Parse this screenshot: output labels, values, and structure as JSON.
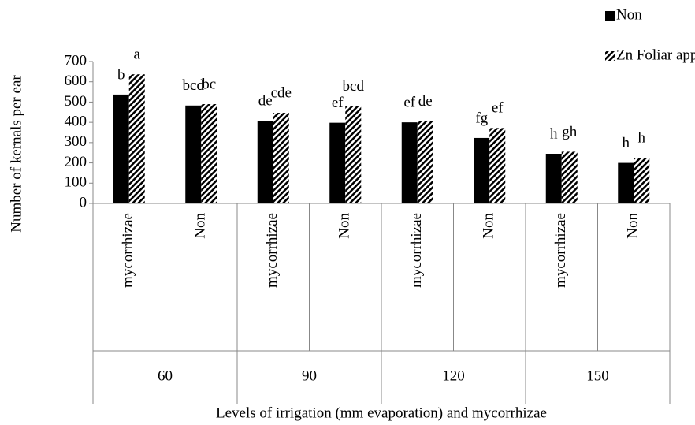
{
  "chart_data": {
    "type": "bar",
    "x_label": "Levels of irrigation (mm evaporation) and mycorrhizae",
    "y_label": "Number of kernals per ear",
    "groups": [
      "60",
      "90",
      "120",
      "150"
    ],
    "categories": [
      "mycorrhizae",
      "Non",
      "mycorrhizae",
      "Non",
      "mycorrhizae",
      "Non",
      "mycorrhizae",
      "Non"
    ],
    "series": [
      {
        "name": "Non",
        "color": "#000000",
        "pattern": "solid",
        "values": [
          537,
          483,
          408,
          398,
          400,
          323,
          245,
          200
        ],
        "letters": [
          "b",
          "bcd",
          "de",
          "ef",
          "ef",
          "fg",
          "h",
          "h"
        ]
      },
      {
        "name": "Zn Foliar application",
        "color": "#000000",
        "pattern": "hatch",
        "values": [
          637,
          490,
          447,
          480,
          405,
          372,
          255,
          225
        ],
        "letters": [
          "a",
          "bc",
          "cde",
          "bcd",
          "de",
          "ef",
          "gh",
          "h"
        ]
      }
    ],
    "ylim": [
      0,
      700
    ],
    "yticks": [
      0,
      100,
      200,
      300,
      400,
      500,
      600,
      700
    ],
    "grid": false,
    "legend": "top-right"
  }
}
